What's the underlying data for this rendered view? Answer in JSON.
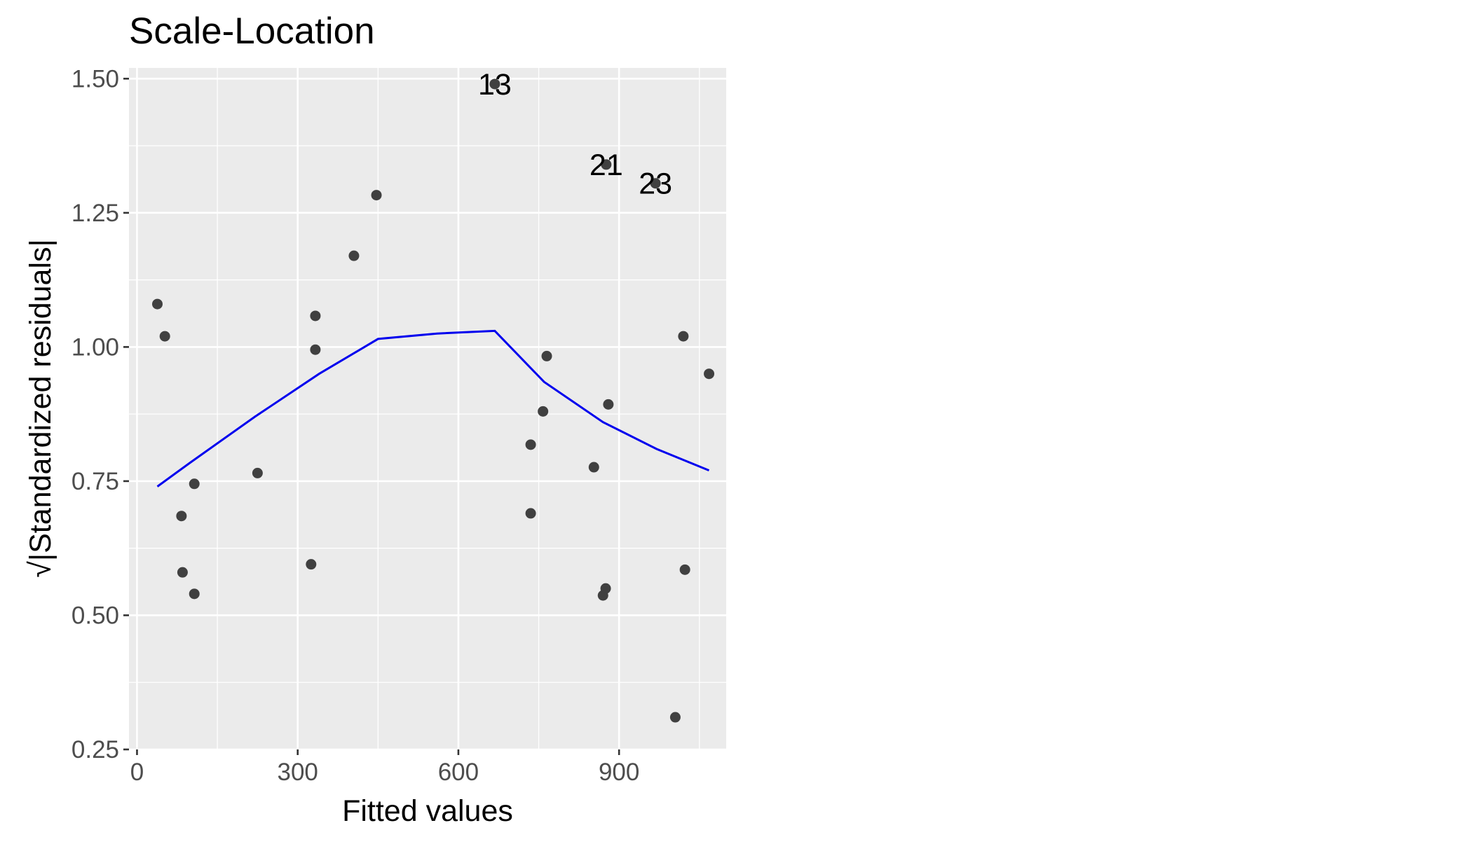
{
  "chart_data": {
    "type": "scatter",
    "title": "Scale-Location",
    "xlabel": "Fitted values",
    "ylabel": "√|Standardized residuals|",
    "xlim": [
      -15,
      1100
    ],
    "ylim": [
      0.25,
      1.52
    ],
    "x_ticks": [
      0,
      300,
      600,
      900
    ],
    "x_tick_labels": [
      "0",
      "300",
      "600",
      "900"
    ],
    "y_ticks": [
      0.25,
      0.5,
      0.75,
      1.0,
      1.25,
      1.5
    ],
    "y_tick_labels": [
      "0.25",
      "0.50",
      "0.75",
      "1.00",
      "1.25",
      "1.50"
    ],
    "grid": true,
    "panel_background": "#ebebeb",
    "point_color": "#404040",
    "line_color": "#0000ee",
    "points": [
      {
        "x": 38,
        "y": 1.08
      },
      {
        "x": 52,
        "y": 1.02
      },
      {
        "x": 83,
        "y": 0.685
      },
      {
        "x": 85,
        "y": 0.58
      },
      {
        "x": 107,
        "y": 0.745
      },
      {
        "x": 107,
        "y": 0.54
      },
      {
        "x": 225,
        "y": 0.765
      },
      {
        "x": 325,
        "y": 0.595
      },
      {
        "x": 333,
        "y": 1.058
      },
      {
        "x": 333,
        "y": 0.995
      },
      {
        "x": 405,
        "y": 1.17
      },
      {
        "x": 447,
        "y": 1.283
      },
      {
        "x": 668,
        "y": 1.49
      },
      {
        "x": 735,
        "y": 0.818
      },
      {
        "x": 735,
        "y": 0.69
      },
      {
        "x": 758,
        "y": 0.88
      },
      {
        "x": 765,
        "y": 0.983
      },
      {
        "x": 853,
        "y": 0.776
      },
      {
        "x": 870,
        "y": 0.537
      },
      {
        "x": 875,
        "y": 0.55
      },
      {
        "x": 876,
        "y": 1.34
      },
      {
        "x": 880,
        "y": 0.893
      },
      {
        "x": 968,
        "y": 1.305
      },
      {
        "x": 1005,
        "y": 0.31
      },
      {
        "x": 1020,
        "y": 1.02
      },
      {
        "x": 1023,
        "y": 0.585
      },
      {
        "x": 1068,
        "y": 0.95
      }
    ],
    "point_labels": [
      {
        "text": "13",
        "x": 668,
        "y": 1.49
      },
      {
        "text": "21",
        "x": 876,
        "y": 1.34
      },
      {
        "text": "23",
        "x": 968,
        "y": 1.305
      }
    ],
    "smooth_line": [
      {
        "x": 38,
        "y": 0.74
      },
      {
        "x": 100,
        "y": 0.785
      },
      {
        "x": 220,
        "y": 0.87
      },
      {
        "x": 340,
        "y": 0.95
      },
      {
        "x": 450,
        "y": 1.015
      },
      {
        "x": 560,
        "y": 1.025
      },
      {
        "x": 668,
        "y": 1.03
      },
      {
        "x": 760,
        "y": 0.935
      },
      {
        "x": 870,
        "y": 0.86
      },
      {
        "x": 970,
        "y": 0.81
      },
      {
        "x": 1068,
        "y": 0.77
      }
    ]
  }
}
